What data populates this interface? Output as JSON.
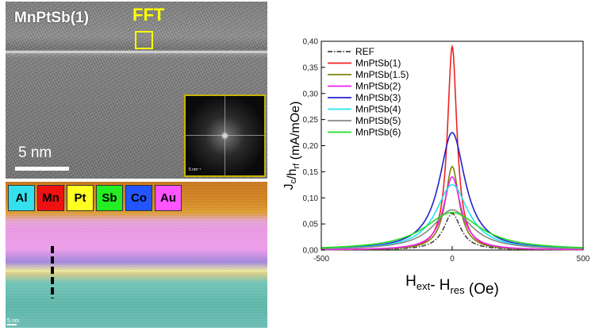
{
  "tem_panel": {
    "title": "MnPtSb(1)",
    "fft_label": "FFT",
    "scale_label": "5 nm",
    "inset_scale_label": "5 nm⁻¹",
    "label_color": "#ffff00"
  },
  "edx_panel": {
    "elements": [
      {
        "symbol": "Al",
        "color": "#33e0ee"
      },
      {
        "symbol": "Mn",
        "color": "#ee1111"
      },
      {
        "symbol": "Pt",
        "color": "#ffff22"
      },
      {
        "symbol": "Sb",
        "color": "#22ee22"
      },
      {
        "symbol": "Co",
        "color": "#2255ff"
      },
      {
        "symbol": "Au",
        "color": "#ff55ff"
      }
    ],
    "scale_label": "5 nm"
  },
  "chart_data": {
    "type": "line",
    "xlabel_main": "H",
    "xlabel_sub1": "ext",
    "xlabel_mid": "- H",
    "xlabel_sub2": "res",
    "xlabel_unit": "(Oe)",
    "ylabel_main": "J",
    "ylabel_sub1": "c",
    "ylabel_mid": "/h",
    "ylabel_sub2": "rf",
    "ylabel_unit": "(mA/mOe)",
    "xlim": [
      -500,
      500
    ],
    "ylim": [
      0,
      0.4
    ],
    "x_ticks": [
      "-500",
      "0",
      "500"
    ],
    "y_ticks": [
      "0,00",
      "0,05",
      "0,10",
      "0,15",
      "0,20",
      "0,25",
      "0,30",
      "0,35",
      "0,40"
    ],
    "legend_position": "top-left",
    "series": [
      {
        "name": "REF",
        "color": "#444444",
        "dash": true,
        "peak": 0.07,
        "hwhm": 40
      },
      {
        "name": "MnPtSb(1)",
        "color": "#ee2222",
        "dash": false,
        "peak": 0.39,
        "hwhm": 22
      },
      {
        "name": "MnPtSb(1.5)",
        "color": "#808010",
        "dash": false,
        "peak": 0.16,
        "hwhm": 32
      },
      {
        "name": "MnPtSb(2)",
        "color": "#ee22ee",
        "dash": false,
        "peak": 0.14,
        "hwhm": 40
      },
      {
        "name": "MnPtSb(3)",
        "color": "#2222cc",
        "dash": false,
        "peak": 0.225,
        "hwhm": 60
      },
      {
        "name": "MnPtSb(4)",
        "color": "#22e6f0",
        "dash": false,
        "peak": 0.125,
        "hwhm": 75
      },
      {
        "name": "MnPtSb(5)",
        "color": "#888888",
        "dash": false,
        "peak": 0.077,
        "hwhm": 90
      },
      {
        "name": "MnPtSb(6)",
        "color": "#22dd22",
        "dash": false,
        "peak": 0.072,
        "hwhm": 130
      }
    ]
  }
}
